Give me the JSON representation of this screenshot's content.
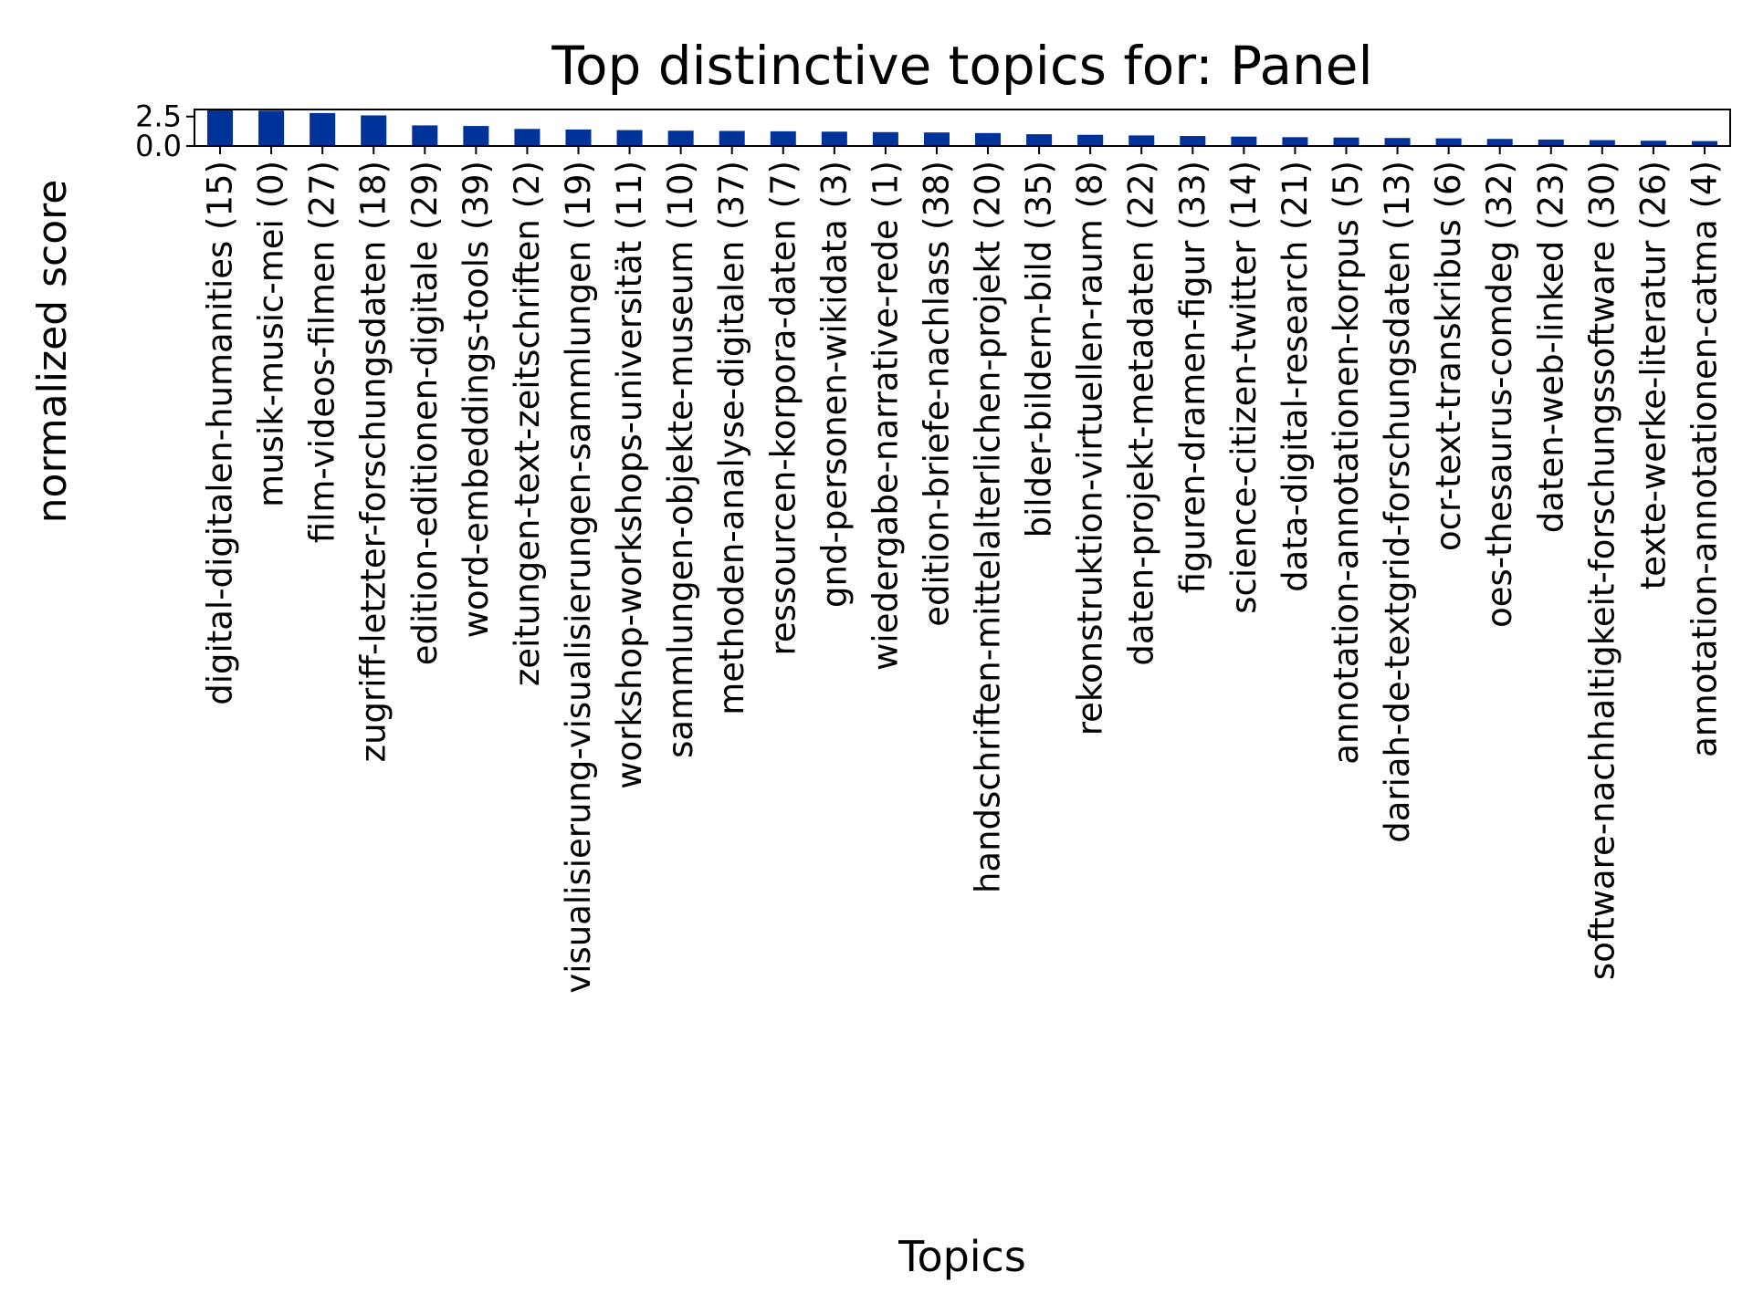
{
  "chart_data": {
    "type": "bar",
    "title": "Top distinctive topics for: Panel",
    "xlabel": "Topics",
    "ylabel": "normalized score",
    "ylim": [
      0,
      3.1
    ],
    "yticks": [
      0.0,
      2.5
    ],
    "ytick_labels": [
      "0.0",
      "2.5"
    ],
    "grid": false,
    "legend": false,
    "bar_color": "#00339a",
    "categories": [
      "digital-digitalen-humanities (15)",
      "musik-music-mei (0)",
      "film-videos-filmen (27)",
      "zugriff-letzter-forschungsdaten (18)",
      "edition-editionen-digitale (29)",
      "word-embeddings-tools (39)",
      "zeitungen-text-zeitschriften (2)",
      "visualisierung-visualisierungen-sammlungen (19)",
      "workshop-workshops-universität (11)",
      "sammlungen-objekte-museum (10)",
      "methoden-analyse-digitalen (37)",
      "ressourcen-korpora-daten (7)",
      "gnd-personen-wikidata (3)",
      "wiedergabe-narrative-rede (1)",
      "edition-briefe-nachlass (38)",
      "handschriften-mittelalterlichen-projekt (20)",
      "bilder-bildern-bild (35)",
      "rekonstruktion-virtuellen-raum (8)",
      "daten-projekt-metadaten (22)",
      "figuren-dramen-figur (33)",
      "science-citizen-twitter (14)",
      "data-digital-research (21)",
      "annotation-annotationen-korpus (5)",
      "dariah-de-textgrid-forschungsdaten (13)",
      "ocr-text-transkribus (6)",
      "oes-thesaurus-comdeg (32)",
      "daten-web-linked (23)",
      "software-nachhaltigkeit-forschungssoftware (30)",
      "texte-werke-literatur (26)",
      "annotation-annotationen-catma (4)"
    ],
    "values": [
      3.1,
      3.0,
      2.8,
      2.6,
      1.75,
      1.7,
      1.45,
      1.4,
      1.35,
      1.3,
      1.28,
      1.25,
      1.22,
      1.18,
      1.15,
      1.1,
      1.0,
      0.95,
      0.9,
      0.85,
      0.8,
      0.75,
      0.72,
      0.68,
      0.65,
      0.6,
      0.55,
      0.5,
      0.45,
      0.42
    ]
  }
}
